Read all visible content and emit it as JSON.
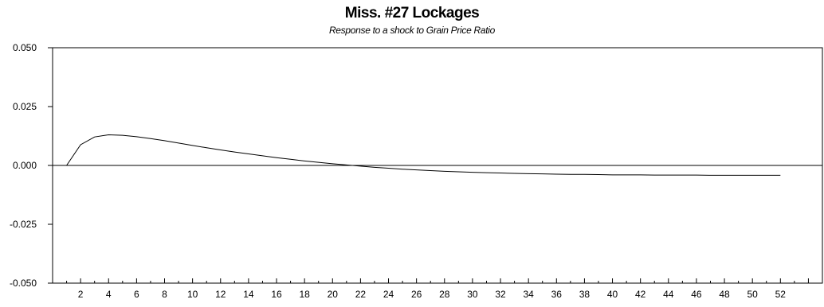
{
  "chart_data": {
    "type": "line",
    "title": "Miss. #27 Lockages",
    "subtitle": "Response to a shock to Grain Price Ratio",
    "xlabel": "",
    "ylabel": "",
    "xlim": [
      0,
      55
    ],
    "ylim": [
      -0.05,
      0.05
    ],
    "y_ticks": [
      "0.050",
      "0.025",
      "0.000",
      "-0.025",
      "-0.050"
    ],
    "y_tick_values": [
      0.05,
      0.025,
      0.0,
      -0.025,
      -0.05
    ],
    "x_tick_labels": [
      "2",
      "4",
      "6",
      "8",
      "10",
      "12",
      "14",
      "16",
      "18",
      "20",
      "22",
      "24",
      "26",
      "28",
      "30",
      "32",
      "34",
      "36",
      "38",
      "40",
      "42",
      "44",
      "46",
      "48",
      "50",
      "52"
    ],
    "x_minor_ticks": "every period 1-54",
    "grid": false,
    "zero_line": true,
    "series": [
      {
        "color": "#000000",
        "x": [
          1,
          2,
          3,
          4,
          5,
          6,
          7,
          8,
          9,
          10,
          11,
          12,
          13,
          14,
          15,
          16,
          17,
          18,
          19,
          20,
          21,
          22,
          23,
          24,
          25,
          26,
          27,
          28,
          29,
          30,
          31,
          32,
          33,
          34,
          35,
          36,
          37,
          38,
          39,
          40,
          41,
          42,
          43,
          44,
          45,
          46,
          47,
          48,
          49,
          50,
          51,
          52
        ],
        "y": [
          0.0,
          0.0088,
          0.0121,
          0.013,
          0.0128,
          0.0122,
          0.0114,
          0.0105,
          0.0095,
          0.0085,
          0.0075,
          0.0066,
          0.0057,
          0.0049,
          0.0041,
          0.0033,
          0.0026,
          0.0019,
          0.0013,
          0.0007,
          0.0002,
          -0.0003,
          -0.0008,
          -0.0012,
          -0.0016,
          -0.0019,
          -0.0022,
          -0.0025,
          -0.0027,
          -0.0029,
          -0.0031,
          -0.0032,
          -0.0034,
          -0.0035,
          -0.0036,
          -0.0037,
          -0.0038,
          -0.0038,
          -0.0039,
          -0.004,
          -0.004,
          -0.004,
          -0.0041,
          -0.0041,
          -0.0041,
          -0.0041,
          -0.0042,
          -0.0042,
          -0.0042,
          -0.0042,
          -0.0042,
          -0.0042
        ]
      }
    ]
  }
}
